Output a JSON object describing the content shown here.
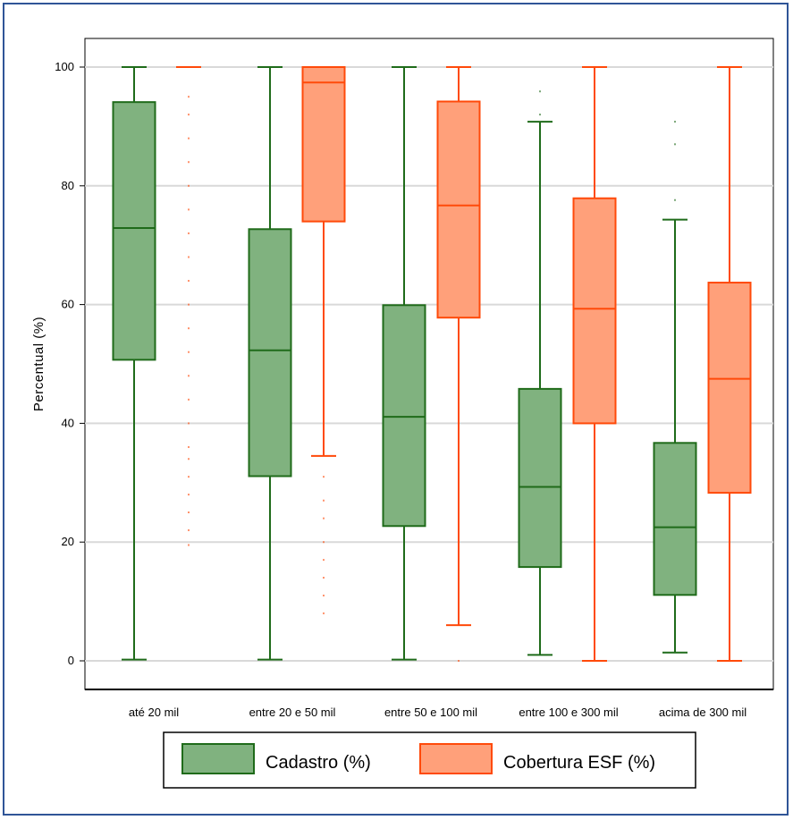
{
  "chart_data": {
    "type": "box",
    "title": "",
    "xlabel": "",
    "ylabel": "Percentual (%)",
    "ylim": [
      -5,
      105
    ],
    "yticks": [
      "0",
      "20",
      "40",
      "60",
      "80",
      "100"
    ],
    "yticks_values": [
      0,
      20,
      40,
      60,
      80,
      100
    ],
    "grid": true,
    "legend_position": "bottom-center",
    "categories": [
      "até 20 mil",
      "entre 20 e 50 mil",
      "entre 50 e 100 mil",
      "entre 100 e 300 mil",
      "acima de 300 mil"
    ],
    "series": [
      {
        "name": "Cadastro (%)",
        "fill": "#80b27f",
        "stroke": "#1f6b1a",
        "boxes": [
          {
            "whisker_low": 0.2,
            "q1": 50.7,
            "median": 72.9,
            "q3": 94.1,
            "whisker_high": 100,
            "outliers": []
          },
          {
            "whisker_low": 0.2,
            "q1": 31.1,
            "median": 52.3,
            "q3": 72.7,
            "whisker_high": 100,
            "outliers": []
          },
          {
            "whisker_low": 0.2,
            "q1": 22.7,
            "median": 41.1,
            "q3": 59.9,
            "whisker_high": 100,
            "outliers": []
          },
          {
            "whisker_low": 1.0,
            "q1": 15.8,
            "median": 29.3,
            "q3": 45.8,
            "whisker_high": 90.8,
            "outliers": [
              92.0,
              95.9
            ]
          },
          {
            "whisker_low": 1.4,
            "q1": 11.1,
            "median": 22.5,
            "q3": 36.7,
            "whisker_high": 74.3,
            "outliers": [
              77.6,
              87.0,
              90.8
            ]
          }
        ]
      },
      {
        "name": "Cobertura ESF (%)",
        "fill": "#ffa07a",
        "stroke": "#ff4a0a",
        "boxes": [
          {
            "whisker_low": 100,
            "q1": 100,
            "median": 100,
            "q3": 100,
            "whisker_high": 100,
            "outliers": [
              19.5,
              22,
              25,
              28,
              31,
              34,
              36,
              40,
              44,
              48,
              52,
              56,
              60,
              64,
              68,
              72,
              76,
              80,
              84,
              88,
              92,
              95
            ]
          },
          {
            "whisker_low": 34.5,
            "q1": 74.0,
            "median": 97.4,
            "q3": 100,
            "whisker_high": 100,
            "outliers": [
              8,
              11,
              14,
              17,
              20,
              24,
              27,
              31
            ]
          },
          {
            "whisker_low": 6.0,
            "q1": 57.8,
            "median": 76.7,
            "q3": 94.2,
            "whisker_high": 100,
            "outliers": [
              0
            ]
          },
          {
            "whisker_low": 0,
            "q1": 40.0,
            "median": 59.3,
            "q3": 77.9,
            "whisker_high": 100,
            "outliers": []
          },
          {
            "whisker_low": 0,
            "q1": 28.3,
            "median": 47.5,
            "q3": 63.7,
            "whisker_high": 100,
            "outliers": []
          }
        ]
      }
    ]
  }
}
